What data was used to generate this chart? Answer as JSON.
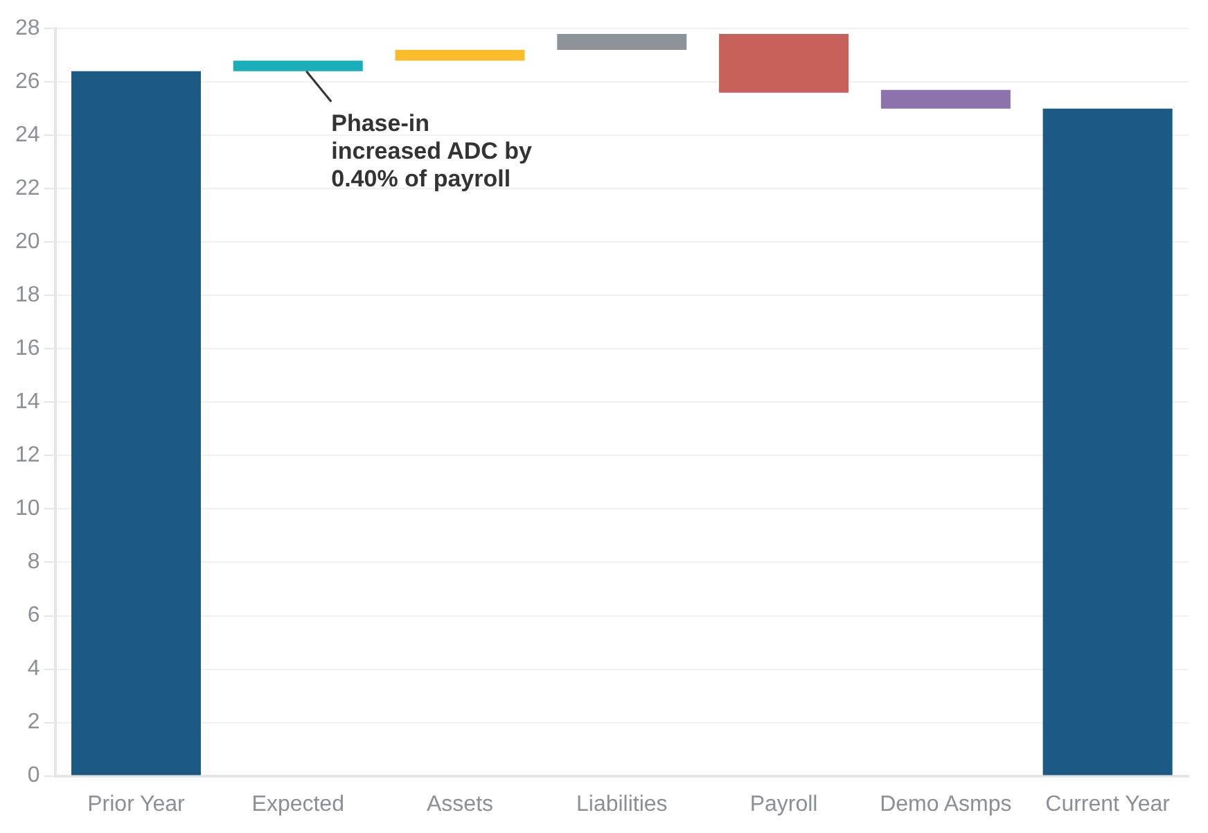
{
  "chart_data": {
    "type": "bar",
    "categories": [
      "Prior Year",
      "Expected",
      "Assets",
      "Liabilities",
      "Payroll",
      "Demo Asmps",
      "Current Year"
    ],
    "values": [
      26.4,
      0.4,
      0.4,
      0.6,
      -2.2,
      -0.7,
      25.0
    ],
    "base": [
      0,
      26.4,
      26.8,
      27.2,
      27.8,
      25.7,
      0
    ],
    "colors": [
      "#1b5a84",
      "#1aaebb",
      "#fbbc2c",
      "#8c9399",
      "#c8605c",
      "#8c73ab",
      "#1b5a84"
    ],
    "ylim": [
      0,
      28
    ],
    "yticks": [
      0,
      2,
      4,
      6,
      8,
      10,
      12,
      14,
      16,
      18,
      20,
      22,
      24,
      26,
      28
    ],
    "grid": "y",
    "annotations": [
      {
        "text": "Phase-in\nincreased ADC by\n0.40% of payroll",
        "x": "Expected",
        "y": 26.4
      }
    ]
  }
}
